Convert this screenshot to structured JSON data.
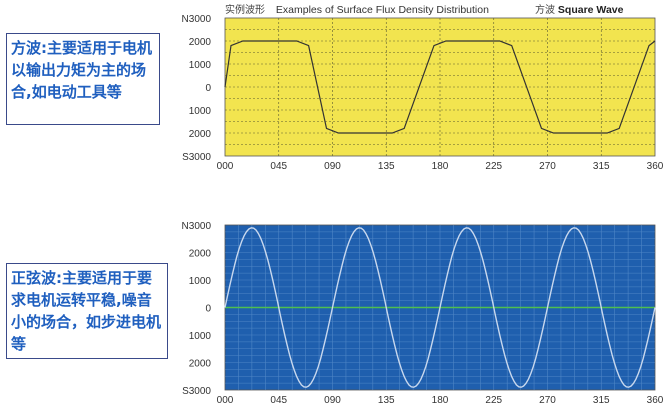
{
  "notes": {
    "square": "方波:主要适用于电机以输出力矩为主的场合,如电动工具等",
    "sine": "正弦波:主要适用于要求电机运转平稳,噪音小的场合，如步进电机等"
  },
  "header": {
    "cn_title": "实例波形",
    "en_title": "Examples of Surface Flux Density Distribution",
    "cn_type": "方波",
    "en_type": "Square Wave"
  },
  "colors": {
    "square_bg": "#f2e44f",
    "square_line": "#333333",
    "sine_bg": "#1f5fae",
    "sine_line": "#c8d8ee",
    "zero_line": "#4fbf4f"
  },
  "chart_data": [
    {
      "type": "line",
      "title": "Examples of Surface Flux Density Distribution",
      "series": [
        {
          "name": "Square Wave",
          "x": [
            0,
            5,
            15,
            60,
            70,
            85,
            95,
            140,
            150,
            175,
            185,
            230,
            240,
            265,
            275,
            320,
            330,
            355,
            360
          ],
          "y": [
            0,
            1800,
            2000,
            2000,
            1800,
            -1800,
            -2000,
            -2000,
            -1800,
            1800,
            2000,
            2000,
            1800,
            -1800,
            -2000,
            -2000,
            -1800,
            1800,
            2000
          ]
        }
      ],
      "xlim": [
        0,
        360
      ],
      "ylim": [
        -3000,
        3000
      ],
      "x_ticks": [
        "000",
        "045",
        "090",
        "135",
        "180",
        "225",
        "270",
        "315",
        "360"
      ],
      "y_ticks": [
        "N3000",
        "2000",
        "1000",
        "0",
        "1000",
        "2000",
        "S3000"
      ],
      "grid": "dashed"
    },
    {
      "type": "line",
      "series": [
        {
          "values_desc": "sinusoid",
          "x": [
            0,
            20,
            45,
            70,
            90,
            110,
            135,
            160,
            180,
            200,
            225,
            250,
            270,
            290,
            315,
            340,
            360
          ],
          "y": [
            0,
            2900,
            0,
            -2900,
            0,
            2900,
            0,
            -2900,
            0,
            2900,
            0,
            -2900,
            0,
            2900,
            0,
            -2900,
            0
          ]
        }
      ],
      "xlim": [
        0,
        360
      ],
      "ylim": [
        -3000,
        3000
      ],
      "x_ticks": [
        "000",
        "045",
        "090",
        "135",
        "180",
        "225",
        "270",
        "315",
        "360"
      ],
      "y_ticks": [
        "N3000",
        "2000",
        "1000",
        "0",
        "1000",
        "2000",
        "S3000"
      ],
      "grid": "solid"
    }
  ]
}
